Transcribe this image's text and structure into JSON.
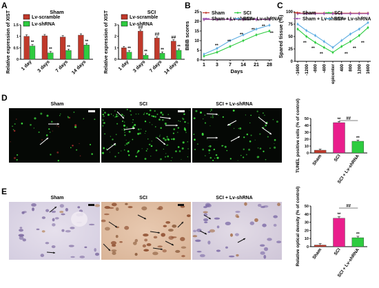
{
  "panels": {
    "A": {
      "letter": "A",
      "charts": [
        {
          "type": "bar",
          "title": "Sham",
          "ylabel": "Relative expression of XIST",
          "categories": [
            "1 day",
            "3 days",
            "7 days",
            "14 days"
          ],
          "ylim": [
            0,
            1.5
          ],
          "yticks": [
            0,
            0.5,
            1.0,
            1.5
          ],
          "series": [
            {
              "name": "Lv-scramble",
              "color": "#c0392b",
              "values": [
                1.0,
                1.02,
                0.97,
                1.05
              ]
            },
            {
              "name": "Lv-shRNA",
              "color": "#2ecc40",
              "values": [
                0.58,
                0.28,
                0.38,
                0.62
              ]
            }
          ],
          "sig": [
            [
              "",
              "**"
            ],
            [
              "",
              "**"
            ],
            [
              "",
              "**"
            ],
            [
              "",
              "**"
            ]
          ]
        },
        {
          "type": "bar",
          "title": "SCI",
          "ylabel": "Relative expression of XIST",
          "categories": [
            "1 day",
            "3 days",
            "7 days",
            "14 days"
          ],
          "ylim": [
            0,
            3
          ],
          "yticks": [
            0,
            1,
            2,
            3
          ],
          "series": [
            {
              "name": "Lv-scramble",
              "color": "#c0392b",
              "values": [
                1.0,
                2.45,
                1.85,
                1.58
              ]
            },
            {
              "name": "Lv-shRNA",
              "color": "#2ecc40",
              "values": [
                0.62,
                0.35,
                0.52,
                0.78
              ]
            }
          ],
          "sig": [
            [
              "",
              "**"
            ],
            [
              "##",
              "**"
            ],
            [
              "##",
              "**"
            ],
            [
              "##",
              "**"
            ]
          ]
        }
      ]
    },
    "B": {
      "letter": "B",
      "chart": {
        "type": "line",
        "ylabel": "BBB scores",
        "xlabel": "Days",
        "x": [
          1,
          3,
          7,
          14,
          21,
          28
        ],
        "ylim": [
          0,
          25
        ],
        "yticks": [
          0,
          5,
          10,
          15,
          20,
          25
        ],
        "series": [
          {
            "name": "Sham",
            "color": "#c0392b",
            "values": [
              21,
              21,
              21,
              21,
              21,
              21
            ]
          },
          {
            "name": "SCI",
            "color": "#2ecc40",
            "values": [
              2,
              4,
              7,
              10,
              13,
              15
            ]
          },
          {
            "name": "Sham + Lv-shRNA",
            "color": "#9b59b6",
            "values": [
              21,
              21,
              21,
              21,
              21,
              21
            ]
          },
          {
            "name": "SCI + Lv-shRNA",
            "color": "#5dade2",
            "values": [
              3,
              6,
              10,
              13,
              16,
              18
            ]
          }
        ]
      }
    },
    "C": {
      "letter": "C",
      "chart": {
        "type": "line",
        "ylabel": "Spared tissue (%)",
        "xlabel": "",
        "x": [
          "-1600",
          "-1200",
          "-800",
          "-400",
          "epicenter",
          "400",
          "800",
          "1200",
          "1600"
        ],
        "ylim": [
          0,
          100
        ],
        "yticks": [
          0,
          25,
          50,
          75,
          100
        ],
        "series": [
          {
            "name": "Sham",
            "color": "#c0392b",
            "values": [
              97,
              97,
              97,
              97,
              97,
              97,
              97,
              97,
              97
            ]
          },
          {
            "name": "SCI",
            "color": "#2ecc40",
            "values": [
              65,
              50,
              38,
              28,
              18,
              30,
              40,
              52,
              68
            ]
          },
          {
            "name": "Sham + Lv-shRNA",
            "color": "#9b59b6",
            "values": [
              96,
              96,
              96,
              96,
              96,
              96,
              96,
              96,
              96
            ]
          },
          {
            "name": "SCI + Lv-shRNA",
            "color": "#5dade2",
            "values": [
              75,
              62,
              52,
              40,
              28,
              42,
              55,
              65,
              78
            ]
          }
        ]
      }
    },
    "D": {
      "letter": "D",
      "images": [
        "Sham",
        "SCI",
        "SCI + Lv-shRNA"
      ],
      "chart": {
        "type": "bar",
        "ylabel": "TUNEL positive cells (% of control)",
        "categories": [
          "Sham",
          "SCI",
          "SCI + Lv-shRNA"
        ],
        "values": [
          4,
          44,
          17
        ],
        "colors": [
          "#c0392b",
          "#e91e8c",
          "#2ecc40"
        ],
        "ylim": [
          0,
          50
        ],
        "yticks": [
          0,
          10,
          20,
          30,
          40,
          50
        ],
        "sig": [
          "",
          "**",
          "**"
        ],
        "bracket": "##"
      }
    },
    "E": {
      "letter": "E",
      "images": [
        "Sham",
        "SCI",
        "SCI + Lv-shRNA"
      ],
      "chart": {
        "type": "bar",
        "ylabel": "Relative optical density (% of control)",
        "categories": [
          "Sham",
          "SCI",
          "SCI + Lv-shRNA"
        ],
        "values": [
          2,
          35,
          11
        ],
        "colors": [
          "#c0392b",
          "#e91e8c",
          "#2ecc40"
        ],
        "ylim": [
          0,
          50
        ],
        "yticks": [
          0,
          10,
          20,
          30,
          40,
          50
        ],
        "sig": [
          "",
          "**",
          "**"
        ],
        "bracket": "##"
      }
    }
  }
}
